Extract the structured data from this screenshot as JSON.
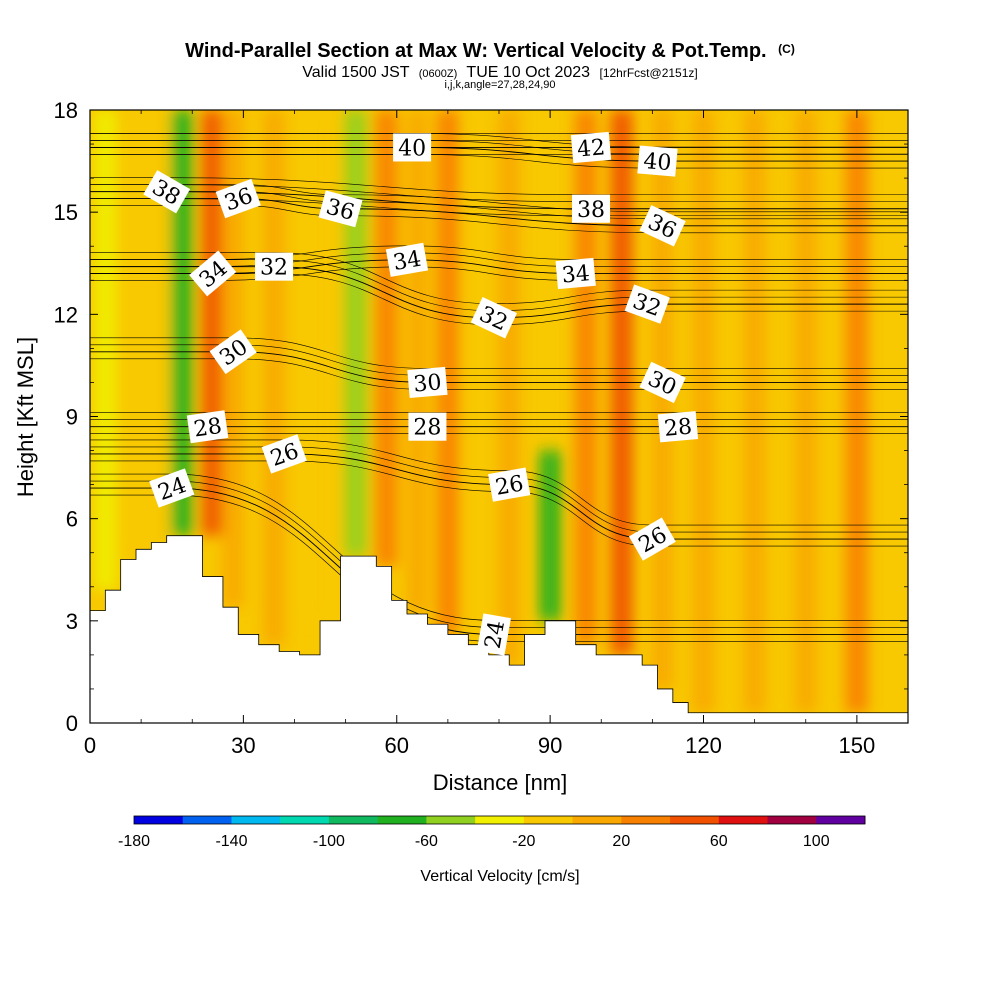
{
  "chart_data": {
    "type": "heatmap",
    "title": "Wind-Parallel Section at Max W: Vertical Velocity & Pot.Temp.",
    "title_mark": "(C)",
    "subtitle_parts": [
      "Valid 1500 JST",
      "(0600Z)",
      "TUE 10 Oct 2023",
      "[12hrFcst@2151z]"
    ],
    "subtitle2": "i,j,k,angle=27,28,24,90",
    "xlabel": "Distance [nm]",
    "ylabel": "Height [Kft MSL]",
    "xlim": [
      0,
      160
    ],
    "ylim": [
      0,
      18
    ],
    "x_ticks": [
      "0",
      "30",
      "60",
      "90",
      "120",
      "150"
    ],
    "x_tick_values": [
      0,
      30,
      60,
      90,
      120,
      150
    ],
    "y_ticks": [
      "0",
      "3",
      "6",
      "9",
      "12",
      "15",
      "18"
    ],
    "y_tick_values": [
      0,
      3,
      6,
      9,
      12,
      15,
      18
    ],
    "colorbar": {
      "label": "Vertical Velocity [cm/s]",
      "tick_labels": [
        "-180",
        "-140",
        "-100",
        "-60",
        "-20",
        "20",
        "60",
        "100"
      ],
      "tick_values": [
        -180,
        -140,
        -100,
        -60,
        -20,
        20,
        60,
        100
      ],
      "min": -180,
      "max": 120,
      "step": 20,
      "colors": [
        "#0000e0",
        "#0060f0",
        "#00b8f0",
        "#00d8b0",
        "#10b860",
        "#20b020",
        "#90d020",
        "#f0f000",
        "#f8c800",
        "#f8a800",
        "#f88000",
        "#f05000",
        "#e01010",
        "#a00040",
        "#6000a0"
      ]
    },
    "terrain": {
      "x": [
        0,
        3,
        3,
        6,
        6,
        9,
        9,
        12,
        12,
        15,
        15,
        22,
        22,
        26,
        26,
        29,
        29,
        33,
        33,
        37,
        37,
        41,
        41,
        45,
        45,
        49,
        49,
        56,
        56,
        59,
        59,
        62,
        62,
        66,
        66,
        70,
        70,
        74,
        74,
        78,
        78,
        82,
        82,
        85,
        85,
        89,
        89,
        95,
        95,
        99,
        99,
        108,
        108,
        111,
        111,
        114,
        114,
        117,
        117,
        120,
        120,
        160
      ],
      "y": [
        3.3,
        3.3,
        3.9,
        3.9,
        4.8,
        4.8,
        5.1,
        5.1,
        5.3,
        5.3,
        5.5,
        5.5,
        4.3,
        4.3,
        3.4,
        3.4,
        2.6,
        2.6,
        2.3,
        2.3,
        2.1,
        2.1,
        2.0,
        2.0,
        3.0,
        3.0,
        4.9,
        4.9,
        4.6,
        4.6,
        3.6,
        3.6,
        3.2,
        3.2,
        2.9,
        2.9,
        2.6,
        2.6,
        2.3,
        2.3,
        2.0,
        2.0,
        1.7,
        1.7,
        2.6,
        2.6,
        3.0,
        3.0,
        2.3,
        2.3,
        2.0,
        2.0,
        1.7,
        1.7,
        1.0,
        1.0,
        0.6,
        0.6,
        0.3,
        0.3,
        0.3,
        0.3
      ]
    },
    "vertical_velocity_cells": [
      {
        "x": 3,
        "y0": 3.9,
        "y1": 18,
        "value": -30
      },
      {
        "x": 13,
        "y0": 5.3,
        "y1": 18,
        "value": -10
      },
      {
        "x": 18,
        "y0": 5.5,
        "y1": 18,
        "value": -70
      },
      {
        "x": 24,
        "y0": 5.5,
        "y1": 18,
        "value": 50
      },
      {
        "x": 28,
        "y0": 3.4,
        "y1": 18,
        "value": 10
      },
      {
        "x": 36,
        "y0": 2.3,
        "y1": 18,
        "value": 0
      },
      {
        "x": 45,
        "y0": 3.0,
        "y1": 18,
        "value": -10
      },
      {
        "x": 52,
        "y0": 4.9,
        "y1": 18,
        "value": -50
      },
      {
        "x": 58,
        "y0": 4.6,
        "y1": 18,
        "value": 30
      },
      {
        "x": 64,
        "y0": 3.2,
        "y1": 18,
        "value": 10
      },
      {
        "x": 70,
        "y0": 2.6,
        "y1": 18,
        "value": 30
      },
      {
        "x": 76,
        "y0": 2.3,
        "y1": 18,
        "value": -10
      },
      {
        "x": 82,
        "y0": 1.7,
        "y1": 18,
        "value": 10
      },
      {
        "x": 90,
        "y0": 3.0,
        "y1": 8,
        "value": -70
      },
      {
        "x": 97,
        "y0": 2.3,
        "y1": 18,
        "value": 30
      },
      {
        "x": 104,
        "y0": 2.0,
        "y1": 18,
        "value": 50
      },
      {
        "x": 112,
        "y0": 1.0,
        "y1": 18,
        "value": 10
      },
      {
        "x": 120,
        "y0": 0.3,
        "y1": 18,
        "value": 0
      },
      {
        "x": 130,
        "y0": 0.3,
        "y1": 18,
        "value": 0
      },
      {
        "x": 140,
        "y0": 0.3,
        "y1": 18,
        "value": 10
      },
      {
        "x": 150,
        "y0": 0.3,
        "y1": 18,
        "value": 30
      }
    ],
    "theta_contours": [
      {
        "label": "24",
        "x": 16,
        "y": 6.9,
        "angle": -20
      },
      {
        "label": "24",
        "x": 79,
        "y": 2.6,
        "angle": -80
      },
      {
        "label": "26",
        "x": 38,
        "y": 7.9,
        "angle": -20
      },
      {
        "label": "26",
        "x": 82,
        "y": 7.0,
        "angle": -10
      },
      {
        "label": "26",
        "x": 110,
        "y": 5.4,
        "angle": -30
      },
      {
        "label": "28",
        "x": 23,
        "y": 8.7,
        "angle": -8
      },
      {
        "label": "28",
        "x": 66,
        "y": 8.7,
        "angle": 0
      },
      {
        "label": "28",
        "x": 115,
        "y": 8.7,
        "angle": -5
      },
      {
        "label": "30",
        "x": 28,
        "y": 10.9,
        "angle": -35
      },
      {
        "label": "30",
        "x": 66,
        "y": 10.0,
        "angle": -5
      },
      {
        "label": "30",
        "x": 112,
        "y": 10.0,
        "angle": 25
      },
      {
        "label": "32",
        "x": 36,
        "y": 13.4,
        "angle": 0
      },
      {
        "label": "32",
        "x": 79,
        "y": 11.9,
        "angle": 25
      },
      {
        "label": "32",
        "x": 109,
        "y": 12.3,
        "angle": 20
      },
      {
        "label": "34",
        "x": 24,
        "y": 13.2,
        "angle": -40
      },
      {
        "label": "34",
        "x": 62,
        "y": 13.6,
        "angle": -10
      },
      {
        "label": "34",
        "x": 95,
        "y": 13.2,
        "angle": -5
      },
      {
        "label": "36",
        "x": 29,
        "y": 15.4,
        "angle": -20
      },
      {
        "label": "36",
        "x": 49,
        "y": 15.1,
        "angle": 15
      },
      {
        "label": "36",
        "x": 112,
        "y": 14.6,
        "angle": 25
      },
      {
        "label": "38",
        "x": 15,
        "y": 15.6,
        "angle": 30
      },
      {
        "label": "38",
        "x": 98,
        "y": 15.1,
        "angle": 0
      },
      {
        "label": "40",
        "x": 63,
        "y": 16.9,
        "angle": 0
      },
      {
        "label": "40",
        "x": 111,
        "y": 16.5,
        "angle": 5
      },
      {
        "label": "42",
        "x": 98,
        "y": 16.9,
        "angle": -5
      }
    ]
  }
}
